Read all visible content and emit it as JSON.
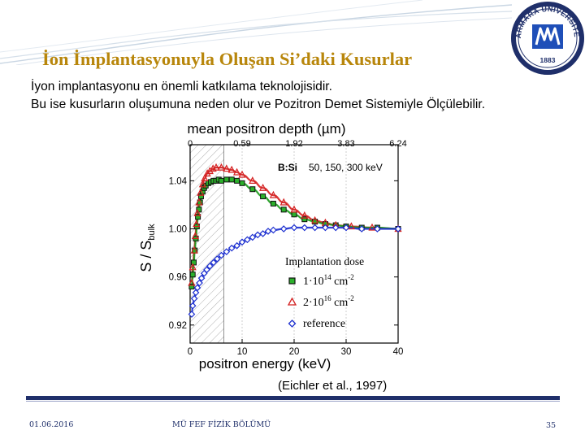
{
  "slide": {
    "title": "İon İmplantasyonuyla Oluşan Si’daki Kusurlar",
    "line1": "İyon implantasyonu en önemli katkılama teknolojisidir.",
    "line2": "Bu ise kusurların oluşumuna neden olur ve Pozitron Demet Sistemiyle Ölçülebilir.",
    "citation": "(Eichler et al., 1997)"
  },
  "footer": {
    "date": "01.06.2016",
    "center": "MÜ FEF FİZİK BÖLÜMÜ",
    "page": "35"
  },
  "logo": {
    "top_text": "MARMARA ÜNİVERSİTESİ",
    "year": "1883",
    "colors": {
      "ring": "#1f2f6a",
      "square": "#1f4fb8",
      "paper": "#ffffff"
    }
  },
  "colors": {
    "title": "#b8860b",
    "accent": "#1f2f6a"
  },
  "chart_data": {
    "type": "scatter",
    "top_axis_label": "mean positron depth (µm)",
    "top_ticks": [
      "0",
      "0.59",
      "1.92",
      "3.83",
      "6.24"
    ],
    "top_tick_energies": [
      0,
      10,
      20,
      30,
      40
    ],
    "xlabel": "positron energy (keV)",
    "ylabel_main": "S / S",
    "ylabel_sub": "bulk",
    "xlim": [
      0,
      40
    ],
    "ylim": [
      0.905,
      1.07
    ],
    "xticks": [
      "0",
      "10",
      "20",
      "30",
      "40"
    ],
    "xtick_values": [
      0,
      10,
      20,
      30,
      40
    ],
    "yticks": [
      "0.92",
      "0.96",
      "1.00",
      "1.04"
    ],
    "ytick_values": [
      0.92,
      0.96,
      1.0,
      1.04
    ],
    "annotation_main": "B:Si",
    "annotation_energies": "50, 150, 300 keV",
    "shaded_region_energy_max": 6.5,
    "legend_title": "Implantation dose",
    "legend_placement": "bottom-right",
    "series": [
      {
        "name_base": "1·10",
        "name_exp": "14",
        "name_unit": " cm",
        "name_unit_exp": "-2",
        "marker": "square",
        "color": "#1a8a1a",
        "fill": "#2bb02b",
        "points": [
          [
            0.3,
            0.952
          ],
          [
            0.5,
            0.962
          ],
          [
            0.7,
            0.972
          ],
          [
            0.9,
            0.982
          ],
          [
            1.1,
            0.992
          ],
          [
            1.3,
            1.002
          ],
          [
            1.5,
            1.01
          ],
          [
            1.7,
            1.016
          ],
          [
            1.9,
            1.022
          ],
          [
            2.1,
            1.027
          ],
          [
            2.4,
            1.031
          ],
          [
            2.7,
            1.034
          ],
          [
            3.0,
            1.036
          ],
          [
            3.5,
            1.038
          ],
          [
            4.0,
            1.039
          ],
          [
            4.5,
            1.04
          ],
          [
            5.0,
            1.04
          ],
          [
            5.5,
            1.041
          ],
          [
            6.0,
            1.04
          ],
          [
            7.0,
            1.041
          ],
          [
            8.0,
            1.041
          ],
          [
            9.0,
            1.04
          ],
          [
            10.0,
            1.038
          ],
          [
            12.0,
            1.033
          ],
          [
            14.0,
            1.027
          ],
          [
            16.0,
            1.021
          ],
          [
            18.0,
            1.016
          ],
          [
            20.0,
            1.012
          ],
          [
            22.0,
            1.008
          ],
          [
            24.0,
            1.006
          ],
          [
            26.0,
            1.004
          ],
          [
            28.0,
            1.003
          ],
          [
            30.0,
            1.002
          ],
          [
            33.0,
            1.001
          ],
          [
            36.0,
            1.001
          ],
          [
            40.0,
            1.0
          ]
        ]
      },
      {
        "name_base": "2·10",
        "name_exp": "16",
        "name_unit": " cm",
        "name_unit_exp": "-2",
        "marker": "triangle",
        "color": "#d42020",
        "fill": "none",
        "points": [
          [
            0.3,
            0.955
          ],
          [
            0.5,
            0.968
          ],
          [
            0.8,
            0.982
          ],
          [
            1.0,
            0.994
          ],
          [
            1.2,
            1.004
          ],
          [
            1.4,
            1.013
          ],
          [
            1.7,
            1.022
          ],
          [
            2.0,
            1.03
          ],
          [
            2.4,
            1.037
          ],
          [
            2.8,
            1.042
          ],
          [
            3.3,
            1.046
          ],
          [
            3.8,
            1.048
          ],
          [
            4.4,
            1.05
          ],
          [
            5.0,
            1.051
          ],
          [
            6.0,
            1.051
          ],
          [
            7.0,
            1.05
          ],
          [
            8.0,
            1.049
          ],
          [
            9.0,
            1.047
          ],
          [
            10.0,
            1.045
          ],
          [
            12.0,
            1.04
          ],
          [
            14.0,
            1.034
          ],
          [
            16.0,
            1.028
          ],
          [
            18.0,
            1.022
          ],
          [
            20.0,
            1.016
          ],
          [
            22.0,
            1.011
          ],
          [
            24.0,
            1.007
          ],
          [
            26.0,
            1.005
          ],
          [
            28.0,
            1.003
          ],
          [
            31.0,
            1.002
          ],
          [
            35.0,
            1.001
          ],
          [
            40.0,
            1.0
          ]
        ]
      },
      {
        "name": "reference",
        "marker": "diamond",
        "color": "#1c2fd0",
        "fill": "none",
        "points": [
          [
            0.3,
            0.929
          ],
          [
            0.5,
            0.936
          ],
          [
            0.8,
            0.942
          ],
          [
            1.1,
            0.947
          ],
          [
            1.4,
            0.951
          ],
          [
            1.8,
            0.955
          ],
          [
            2.2,
            0.959
          ],
          [
            2.7,
            0.963
          ],
          [
            3.2,
            0.966
          ],
          [
            3.8,
            0.969
          ],
          [
            4.5,
            0.972
          ],
          [
            5.2,
            0.975
          ],
          [
            6.0,
            0.978
          ],
          [
            7.0,
            0.981
          ],
          [
            8.0,
            0.984
          ],
          [
            9.0,
            0.986
          ],
          [
            10.0,
            0.989
          ],
          [
            11.0,
            0.991
          ],
          [
            12.0,
            0.993
          ],
          [
            13.0,
            0.995
          ],
          [
            14.0,
            0.996
          ],
          [
            15.0,
            0.998
          ],
          [
            16.0,
            0.999
          ],
          [
            18.0,
            1.0
          ],
          [
            20.0,
            1.001
          ],
          [
            22.0,
            1.001
          ],
          [
            24.0,
            1.001
          ],
          [
            26.0,
            1.001
          ],
          [
            28.0,
            1.001
          ],
          [
            30.0,
            1.001
          ],
          [
            33.0,
            1.0
          ],
          [
            36.0,
            1.0
          ],
          [
            40.0,
            1.0
          ]
        ]
      }
    ]
  }
}
